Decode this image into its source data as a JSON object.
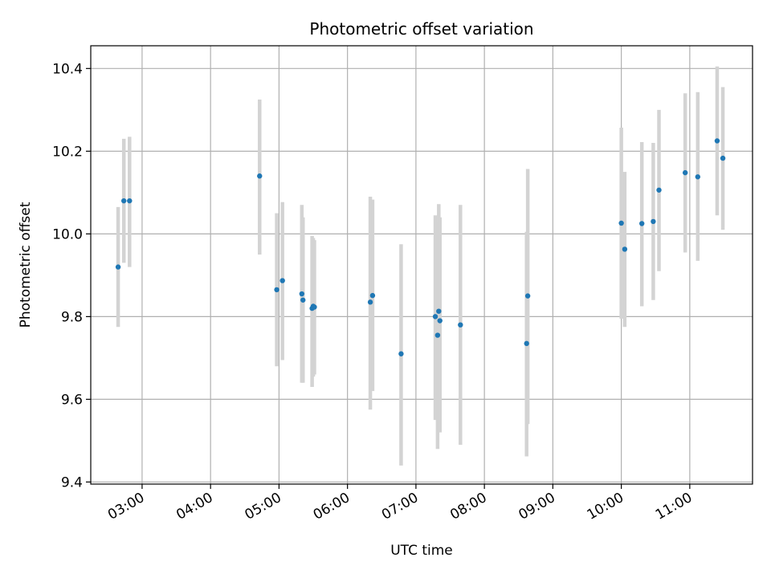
{
  "chart_data": {
    "type": "scatter",
    "title": "Photometric offset variation",
    "xlabel": "UTC time",
    "ylabel": "Photometric offset",
    "xlim": [
      "02:15",
      "11:55"
    ],
    "ylim": [
      9.395,
      10.455
    ],
    "x_ticks": [
      "03:00",
      "04:00",
      "05:00",
      "06:00",
      "07:00",
      "08:00",
      "09:00",
      "10:00",
      "11:00"
    ],
    "y_ticks": [
      "9.4",
      "9.6",
      "9.8",
      "10.0",
      "10.2",
      "10.4"
    ],
    "grid": true,
    "colors": {
      "points": "#1f77b4",
      "errorbars": "#d3d3d3",
      "grid": "#b0b0b0"
    },
    "series": [
      {
        "points": [
          {
            "x": "02:39",
            "y": 9.92,
            "lo": 9.775,
            "hi": 10.065
          },
          {
            "x": "02:44",
            "y": 10.08,
            "lo": 9.93,
            "hi": 10.23
          },
          {
            "x": "02:49",
            "y": 10.08,
            "lo": 9.92,
            "hi": 10.235
          },
          {
            "x": "04:43",
            "y": 10.14,
            "lo": 9.95,
            "hi": 10.325
          },
          {
            "x": "04:58",
            "y": 9.865,
            "lo": 9.68,
            "hi": 10.05
          },
          {
            "x": "05:03",
            "y": 9.887,
            "lo": 9.695,
            "hi": 10.077
          },
          {
            "x": "05:20",
            "y": 9.855,
            "lo": 9.64,
            "hi": 10.07
          },
          {
            "x": "05:21",
            "y": 9.84,
            "lo": 9.64,
            "hi": 10.04
          },
          {
            "x": "05:29",
            "y": 9.82,
            "lo": 9.63,
            "hi": 9.995
          },
          {
            "x": "05:30",
            "y": 9.825,
            "lo": 9.655,
            "hi": 9.99
          },
          {
            "x": "05:31",
            "y": 9.823,
            "lo": 9.66,
            "hi": 9.985
          },
          {
            "x": "06:20",
            "y": 9.835,
            "lo": 9.575,
            "hi": 10.09
          },
          {
            "x": "06:22",
            "y": 9.851,
            "lo": 9.62,
            "hi": 10.083
          },
          {
            "x": "06:47",
            "y": 9.71,
            "lo": 9.44,
            "hi": 9.975
          },
          {
            "x": "07:17",
            "y": 9.8,
            "lo": 9.55,
            "hi": 10.045
          },
          {
            "x": "07:19",
            "y": 9.755,
            "lo": 9.48,
            "hi": 10.03
          },
          {
            "x": "07:20",
            "y": 9.813,
            "lo": 9.56,
            "hi": 10.072
          },
          {
            "x": "07:21",
            "y": 9.79,
            "lo": 9.52,
            "hi": 10.04
          },
          {
            "x": "07:39",
            "y": 9.78,
            "lo": 9.49,
            "hi": 10.07
          },
          {
            "x": "08:37",
            "y": 9.735,
            "lo": 9.462,
            "hi": 10.005
          },
          {
            "x": "08:38",
            "y": 9.85,
            "lo": 9.54,
            "hi": 10.157
          },
          {
            "x": "10:00",
            "y": 10.026,
            "lo": 9.795,
            "hi": 10.257
          },
          {
            "x": "10:03",
            "y": 9.963,
            "lo": 9.775,
            "hi": 10.15
          },
          {
            "x": "10:18",
            "y": 10.025,
            "lo": 9.825,
            "hi": 10.222
          },
          {
            "x": "10:28",
            "y": 10.03,
            "lo": 9.84,
            "hi": 10.22
          },
          {
            "x": "10:33",
            "y": 10.106,
            "lo": 9.91,
            "hi": 10.3
          },
          {
            "x": "10:56",
            "y": 10.148,
            "lo": 9.955,
            "hi": 10.34
          },
          {
            "x": "11:07",
            "y": 10.138,
            "lo": 9.935,
            "hi": 10.343
          },
          {
            "x": "11:24",
            "y": 10.225,
            "lo": 10.045,
            "hi": 10.405
          },
          {
            "x": "11:29",
            "y": 10.183,
            "lo": 10.01,
            "hi": 10.355
          }
        ]
      }
    ]
  }
}
